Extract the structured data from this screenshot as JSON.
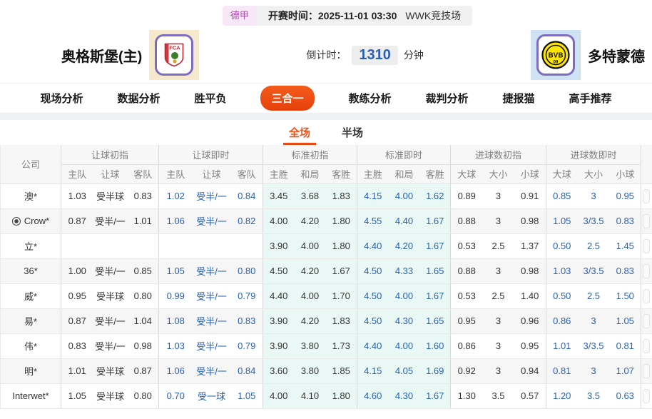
{
  "top_bar": {
    "league": "德甲",
    "kickoff_label": "开赛时间：",
    "kickoff_time": "2025-11-01 03:30",
    "venue": "WWK竞技场"
  },
  "match_header": {
    "home_name": "奥格斯堡(主)",
    "home_logo_text": "FCA",
    "away_name": "多特蒙德",
    "away_logo_text": "BVB",
    "away_logo_sub": "09",
    "countdown_label": "倒计时：",
    "countdown_value": "1310",
    "countdown_unit": "分钟"
  },
  "nav": {
    "items": [
      {
        "label": "现场分析",
        "active": false
      },
      {
        "label": "数据分析",
        "active": false
      },
      {
        "label": "胜平负",
        "active": false
      },
      {
        "label": "三合一",
        "active": true
      },
      {
        "label": "教练分析",
        "active": false
      },
      {
        "label": "裁判分析",
        "active": false
      },
      {
        "label": "捷报猫",
        "active": false
      },
      {
        "label": "高手推荐",
        "active": false
      }
    ]
  },
  "sub_tabs": [
    {
      "label": "全场",
      "active": true
    },
    {
      "label": "半场",
      "active": false
    }
  ],
  "table": {
    "company_header": "公司",
    "groups": [
      {
        "label": "让球初指",
        "cols": [
          "主队",
          "让球",
          "客队"
        ],
        "live": false,
        "cyan": false
      },
      {
        "label": "让球即时",
        "cols": [
          "主队",
          "让球",
          "客队"
        ],
        "live": true,
        "cyan": false
      },
      {
        "label": "标准初指",
        "cols": [
          "主胜",
          "和局",
          "客胜"
        ],
        "live": false,
        "cyan": true
      },
      {
        "label": "标准即时",
        "cols": [
          "主胜",
          "和局",
          "客胜"
        ],
        "live": true,
        "cyan": true
      },
      {
        "label": "进球数初指",
        "cols": [
          "大球",
          "大小",
          "小球"
        ],
        "live": false,
        "cyan": false
      },
      {
        "label": "进球数即时",
        "cols": [
          "大球",
          "大小",
          "小球"
        ],
        "live": true,
        "cyan": false
      }
    ],
    "rows": [
      {
        "company": "澳*",
        "icon": "",
        "cells": [
          "1.03",
          "受半球",
          "0.83",
          "1.02",
          "受半/一",
          "0.84",
          "3.45",
          "3.68",
          "1.83",
          "4.15",
          "4.00",
          "1.62",
          "0.89",
          "3",
          "0.91",
          "0.85",
          "3",
          "0.95"
        ]
      },
      {
        "company": "Crow*",
        "icon": "football",
        "cells": [
          "0.87",
          "受半/一",
          "1.01",
          "1.06",
          "受半/一",
          "0.82",
          "4.00",
          "4.20",
          "1.80",
          "4.55",
          "4.40",
          "1.67",
          "0.88",
          "3",
          "0.98",
          "1.05",
          "3/3.5",
          "0.83"
        ]
      },
      {
        "company": "立*",
        "icon": "",
        "cells": [
          "",
          "",
          "",
          "",
          "",
          "",
          "3.90",
          "4.00",
          "1.80",
          "4.40",
          "4.20",
          "1.67",
          "0.53",
          "2.5",
          "1.37",
          "0.50",
          "2.5",
          "1.45"
        ]
      },
      {
        "company": "36*",
        "icon": "",
        "cells": [
          "1.00",
          "受半/一",
          "0.85",
          "1.05",
          "受半/一",
          "0.80",
          "4.50",
          "4.20",
          "1.67",
          "4.50",
          "4.33",
          "1.65",
          "0.88",
          "3",
          "0.98",
          "1.03",
          "3/3.5",
          "0.83"
        ]
      },
      {
        "company": "威*",
        "icon": "",
        "cells": [
          "0.95",
          "受半球",
          "0.80",
          "0.99",
          "受半/一",
          "0.79",
          "4.40",
          "4.00",
          "1.70",
          "4.50",
          "4.00",
          "1.67",
          "0.53",
          "2.5",
          "1.40",
          "0.50",
          "2.5",
          "1.50"
        ]
      },
      {
        "company": "易*",
        "icon": "",
        "cells": [
          "0.87",
          "受半/一",
          "1.04",
          "1.08",
          "受半/一",
          "0.83",
          "3.90",
          "4.20",
          "1.83",
          "4.50",
          "4.30",
          "1.65",
          "0.95",
          "3",
          "0.96",
          "0.86",
          "3",
          "1.05"
        ]
      },
      {
        "company": "伟*",
        "icon": "",
        "cells": [
          "0.83",
          "受半/一",
          "0.98",
          "1.03",
          "受半/一",
          "0.79",
          "3.90",
          "3.80",
          "1.73",
          "4.40",
          "4.00",
          "1.60",
          "0.86",
          "3",
          "0.95",
          "1.01",
          "3/3.5",
          "0.81"
        ]
      },
      {
        "company": "明*",
        "icon": "",
        "cells": [
          "1.01",
          "受半球",
          "0.87",
          "1.06",
          "受半/一",
          "0.84",
          "3.60",
          "3.80",
          "1.85",
          "4.15",
          "4.05",
          "1.69",
          "0.92",
          "3",
          "0.94",
          "0.81",
          "3",
          "1.07"
        ]
      },
      {
        "company": "Interwet*",
        "icon": "",
        "cells": [
          "1.05",
          "受半球",
          "0.80",
          "0.70",
          "受一球",
          "1.05",
          "4.00",
          "4.10",
          "1.80",
          "4.60",
          "4.30",
          "1.67",
          "1.30",
          "3.5",
          "0.57",
          "1.20",
          "3.5",
          "0.63"
        ]
      }
    ]
  },
  "colors": {
    "accent_orange": "#ee4f13",
    "live_blue": "#2a60b4",
    "standard_col_bg": "#e9f8f5",
    "league_badge_text": "#a94fa9",
    "home_tile_bg": "#f6e8cc",
    "away_tile_bg": "#cfe2f3"
  }
}
